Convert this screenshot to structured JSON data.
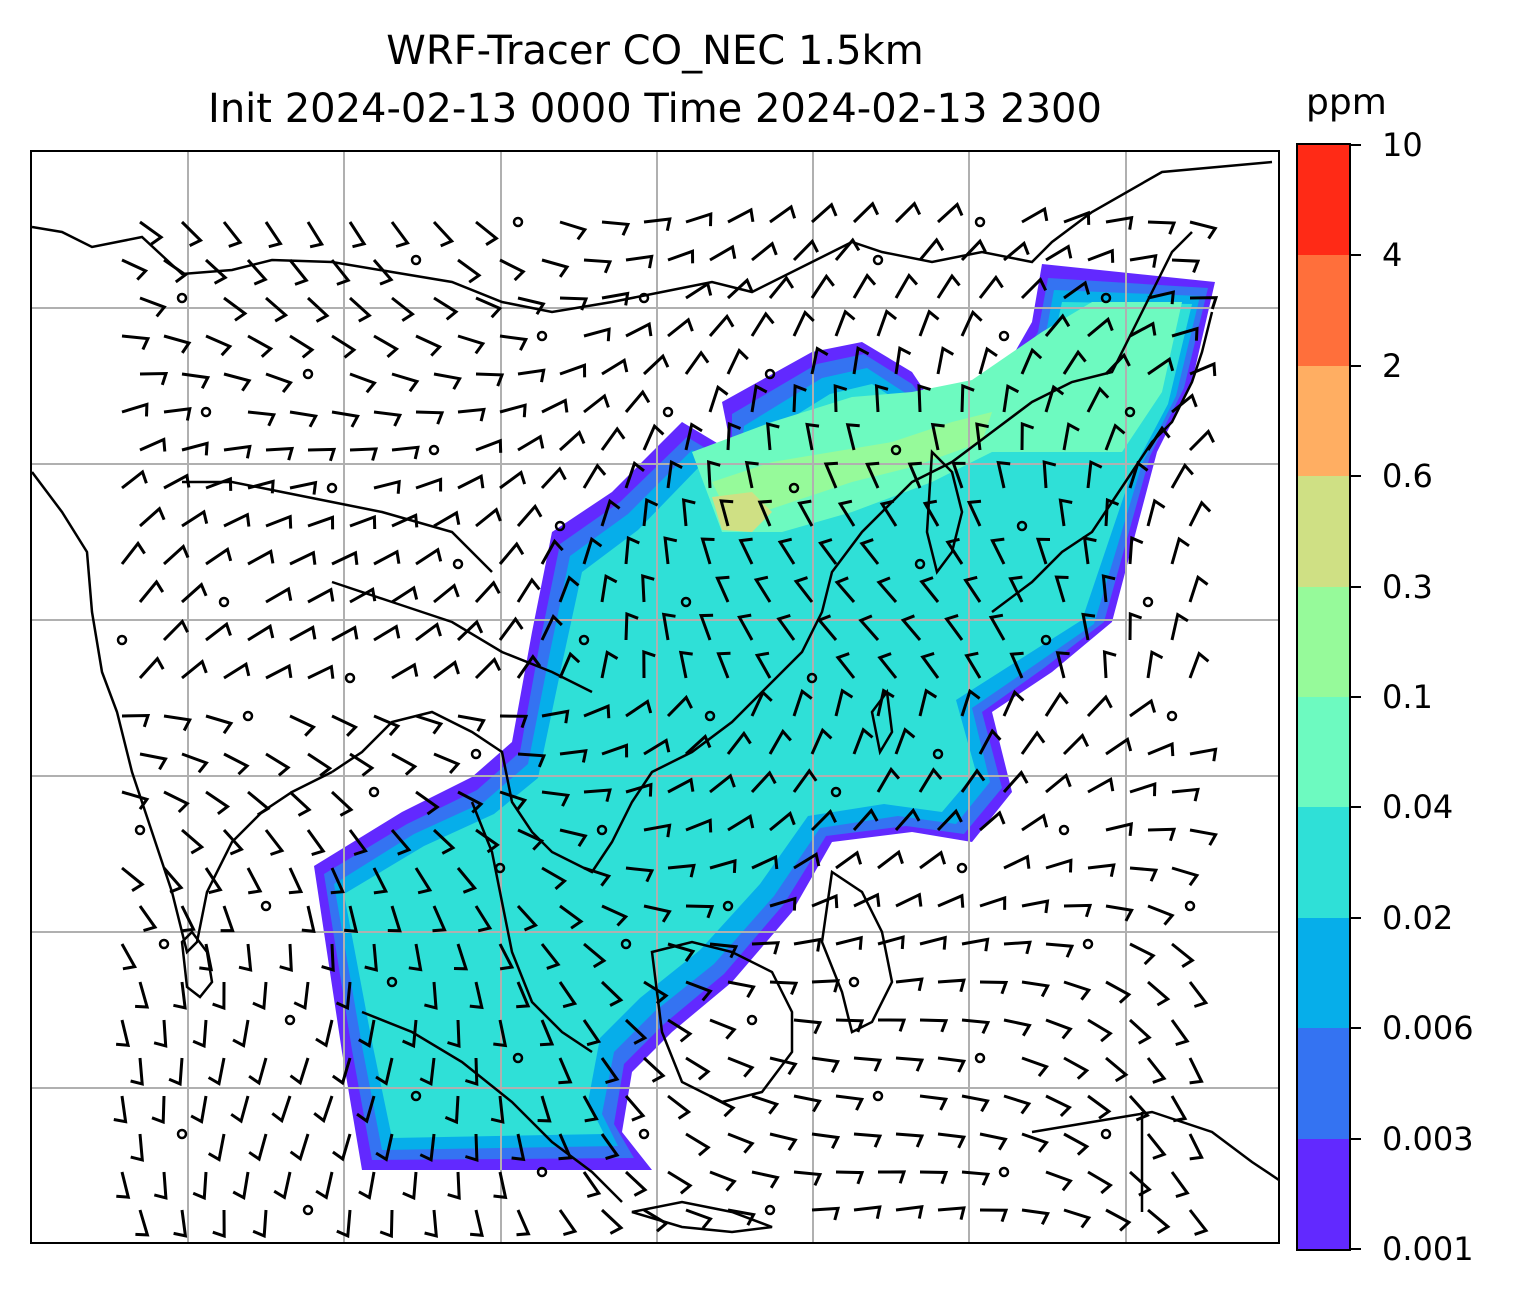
{
  "title": {
    "line1": "WRF-Tracer CO_NEC 1.5km",
    "line2": "Init 2024-02-13 0000 Time 2024-02-13 2300"
  },
  "colorbar": {
    "unit": "ppm",
    "tick_labels": [
      "0.001",
      "0.003",
      "0.006",
      "0.02",
      "0.04",
      "0.1",
      "0.3",
      "0.6",
      "2",
      "4",
      "10"
    ],
    "colors": [
      "#6229ff",
      "#3473f2",
      "#06aeea",
      "#2fe0d7",
      "#6dfac0",
      "#96fa9a",
      "#cfe084",
      "#ffae62",
      "#ff6f3b",
      "#ff2a16"
    ]
  },
  "map": {
    "gridlines": true,
    "features": [
      "coastlines",
      "country-borders",
      "tracer-concentration-field",
      "wind-barbs"
    ],
    "overlay_color": "#000000",
    "grid_color": "#b0b0b0"
  }
}
